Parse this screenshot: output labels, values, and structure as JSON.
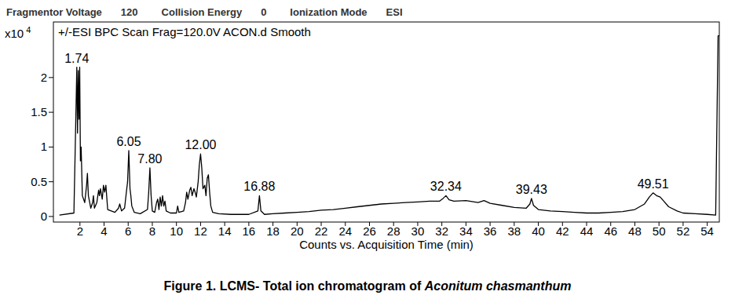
{
  "chart_data": {
    "type": "line",
    "header": [
      {
        "label": "Fragmentor Voltage",
        "value": "120"
      },
      {
        "label": "Collision Energy",
        "value": "0"
      },
      {
        "label": "Ionization Mode",
        "value": "ESI"
      }
    ],
    "title": "+/-ESI BPC Scan Frag=120.0V ACON.d  Smooth",
    "ylabel": "x10",
    "ylabel_exponent": "4",
    "xlabel": "Counts vs. Acquisition Time (min)",
    "caption": {
      "label": "Figure 1.",
      "text": " LCMS- Total ion chromatogram of ",
      "species": "Aconitum chasmanthum"
    },
    "color": "#000000",
    "xlim": [
      -0.2,
      55
    ],
    "ylim": [
      -0.08,
      2.8
    ],
    "xticks": [
      2,
      4,
      6,
      8,
      10,
      12,
      14,
      16,
      18,
      20,
      22,
      24,
      26,
      28,
      30,
      32,
      34,
      36,
      38,
      40,
      42,
      44,
      46,
      48,
      50,
      52,
      54
    ],
    "yticks": [
      0,
      0.5,
      1,
      1.5,
      2
    ],
    "grid": false,
    "annotations": [
      {
        "x": 1.74,
        "y": 2.15,
        "label": "1.74"
      },
      {
        "x": 6.05,
        "y": 0.95,
        "label": "6.05"
      },
      {
        "x": 7.8,
        "y": 0.7,
        "label": "7.80"
      },
      {
        "x": 12.0,
        "y": 0.9,
        "label": "12.00"
      },
      {
        "x": 16.88,
        "y": 0.3,
        "label": "16.88"
      },
      {
        "x": 32.34,
        "y": 0.3,
        "label": "32.34"
      },
      {
        "x": 39.43,
        "y": 0.26,
        "label": "39.43"
      },
      {
        "x": 49.51,
        "y": 0.34,
        "label": "49.51"
      }
    ],
    "x": [
      0.3,
      1.5,
      1.6,
      1.68,
      1.74,
      1.8,
      1.86,
      1.92,
      1.98,
      2.04,
      2.1,
      2.2,
      2.4,
      2.55,
      2.62,
      2.7,
      2.9,
      3.05,
      3.12,
      3.2,
      3.4,
      3.55,
      3.62,
      3.7,
      3.85,
      3.95,
      4.05,
      4.15,
      4.3,
      4.9,
      5.2,
      5.3,
      5.45,
      5.7,
      5.85,
      5.95,
      6.05,
      6.15,
      6.22,
      6.3,
      6.5,
      7.0,
      7.6,
      7.7,
      7.8,
      7.9,
      8.0,
      8.2,
      8.35,
      8.45,
      8.55,
      8.65,
      8.75,
      8.85,
      8.95,
      9.05,
      9.15,
      9.5,
      10.0,
      10.1,
      10.2,
      10.6,
      10.75,
      10.85,
      10.95,
      11.1,
      11.2,
      11.3,
      11.45,
      11.55,
      11.65,
      11.8,
      11.9,
      12.0,
      12.1,
      12.2,
      12.35,
      12.45,
      12.55,
      12.65,
      12.75,
      12.85,
      13.0,
      13.5,
      14.5,
      16.0,
      16.75,
      16.88,
      17.0,
      17.3,
      18,
      19,
      20,
      21,
      22,
      23,
      24,
      25,
      26,
      27,
      28,
      29,
      30,
      31,
      31.8,
      32.1,
      32.34,
      32.6,
      33,
      34,
      35,
      35.5,
      36,
      37,
      38,
      39,
      39.3,
      39.43,
      39.6,
      40,
      41,
      42,
      43,
      44,
      45,
      46,
      47,
      48,
      48.8,
      49.2,
      49.51,
      49.8,
      50.1,
      50.4,
      50.8,
      51.5,
      52,
      53,
      54,
      54.7,
      54.9,
      55
    ],
    "values": [
      0.02,
      0.05,
      0.9,
      1.6,
      2.15,
      1.2,
      2.1,
      1.4,
      2.15,
      0.8,
      1.0,
      0.3,
      0.2,
      0.45,
      0.62,
      0.3,
      0.12,
      0.2,
      0.3,
      0.12,
      0.2,
      0.38,
      0.3,
      0.4,
      0.25,
      0.45,
      0.35,
      0.45,
      0.1,
      0.06,
      0.12,
      0.18,
      0.08,
      0.12,
      0.35,
      0.5,
      0.95,
      0.4,
      0.3,
      0.15,
      0.06,
      0.04,
      0.1,
      0.35,
      0.7,
      0.3,
      0.08,
      0.06,
      0.2,
      0.25,
      0.1,
      0.28,
      0.15,
      0.3,
      0.15,
      0.22,
      0.08,
      0.05,
      0.05,
      0.15,
      0.06,
      0.08,
      0.2,
      0.35,
      0.25,
      0.38,
      0.42,
      0.3,
      0.4,
      0.35,
      0.28,
      0.5,
      0.75,
      0.9,
      0.7,
      0.4,
      0.45,
      0.3,
      0.55,
      0.6,
      0.35,
      0.15,
      0.06,
      0.04,
      0.03,
      0.03,
      0.08,
      0.3,
      0.08,
      0.03,
      0.04,
      0.05,
      0.06,
      0.07,
      0.09,
      0.1,
      0.12,
      0.14,
      0.16,
      0.18,
      0.19,
      0.2,
      0.21,
      0.22,
      0.22,
      0.26,
      0.3,
      0.24,
      0.22,
      0.23,
      0.2,
      0.23,
      0.19,
      0.16,
      0.13,
      0.12,
      0.18,
      0.26,
      0.16,
      0.1,
      0.08,
      0.07,
      0.06,
      0.05,
      0.05,
      0.06,
      0.07,
      0.1,
      0.18,
      0.28,
      0.34,
      0.3,
      0.28,
      0.22,
      0.14,
      0.08,
      0.05,
      0.04,
      0.03,
      0.02,
      2.6,
      2.6
    ]
  }
}
